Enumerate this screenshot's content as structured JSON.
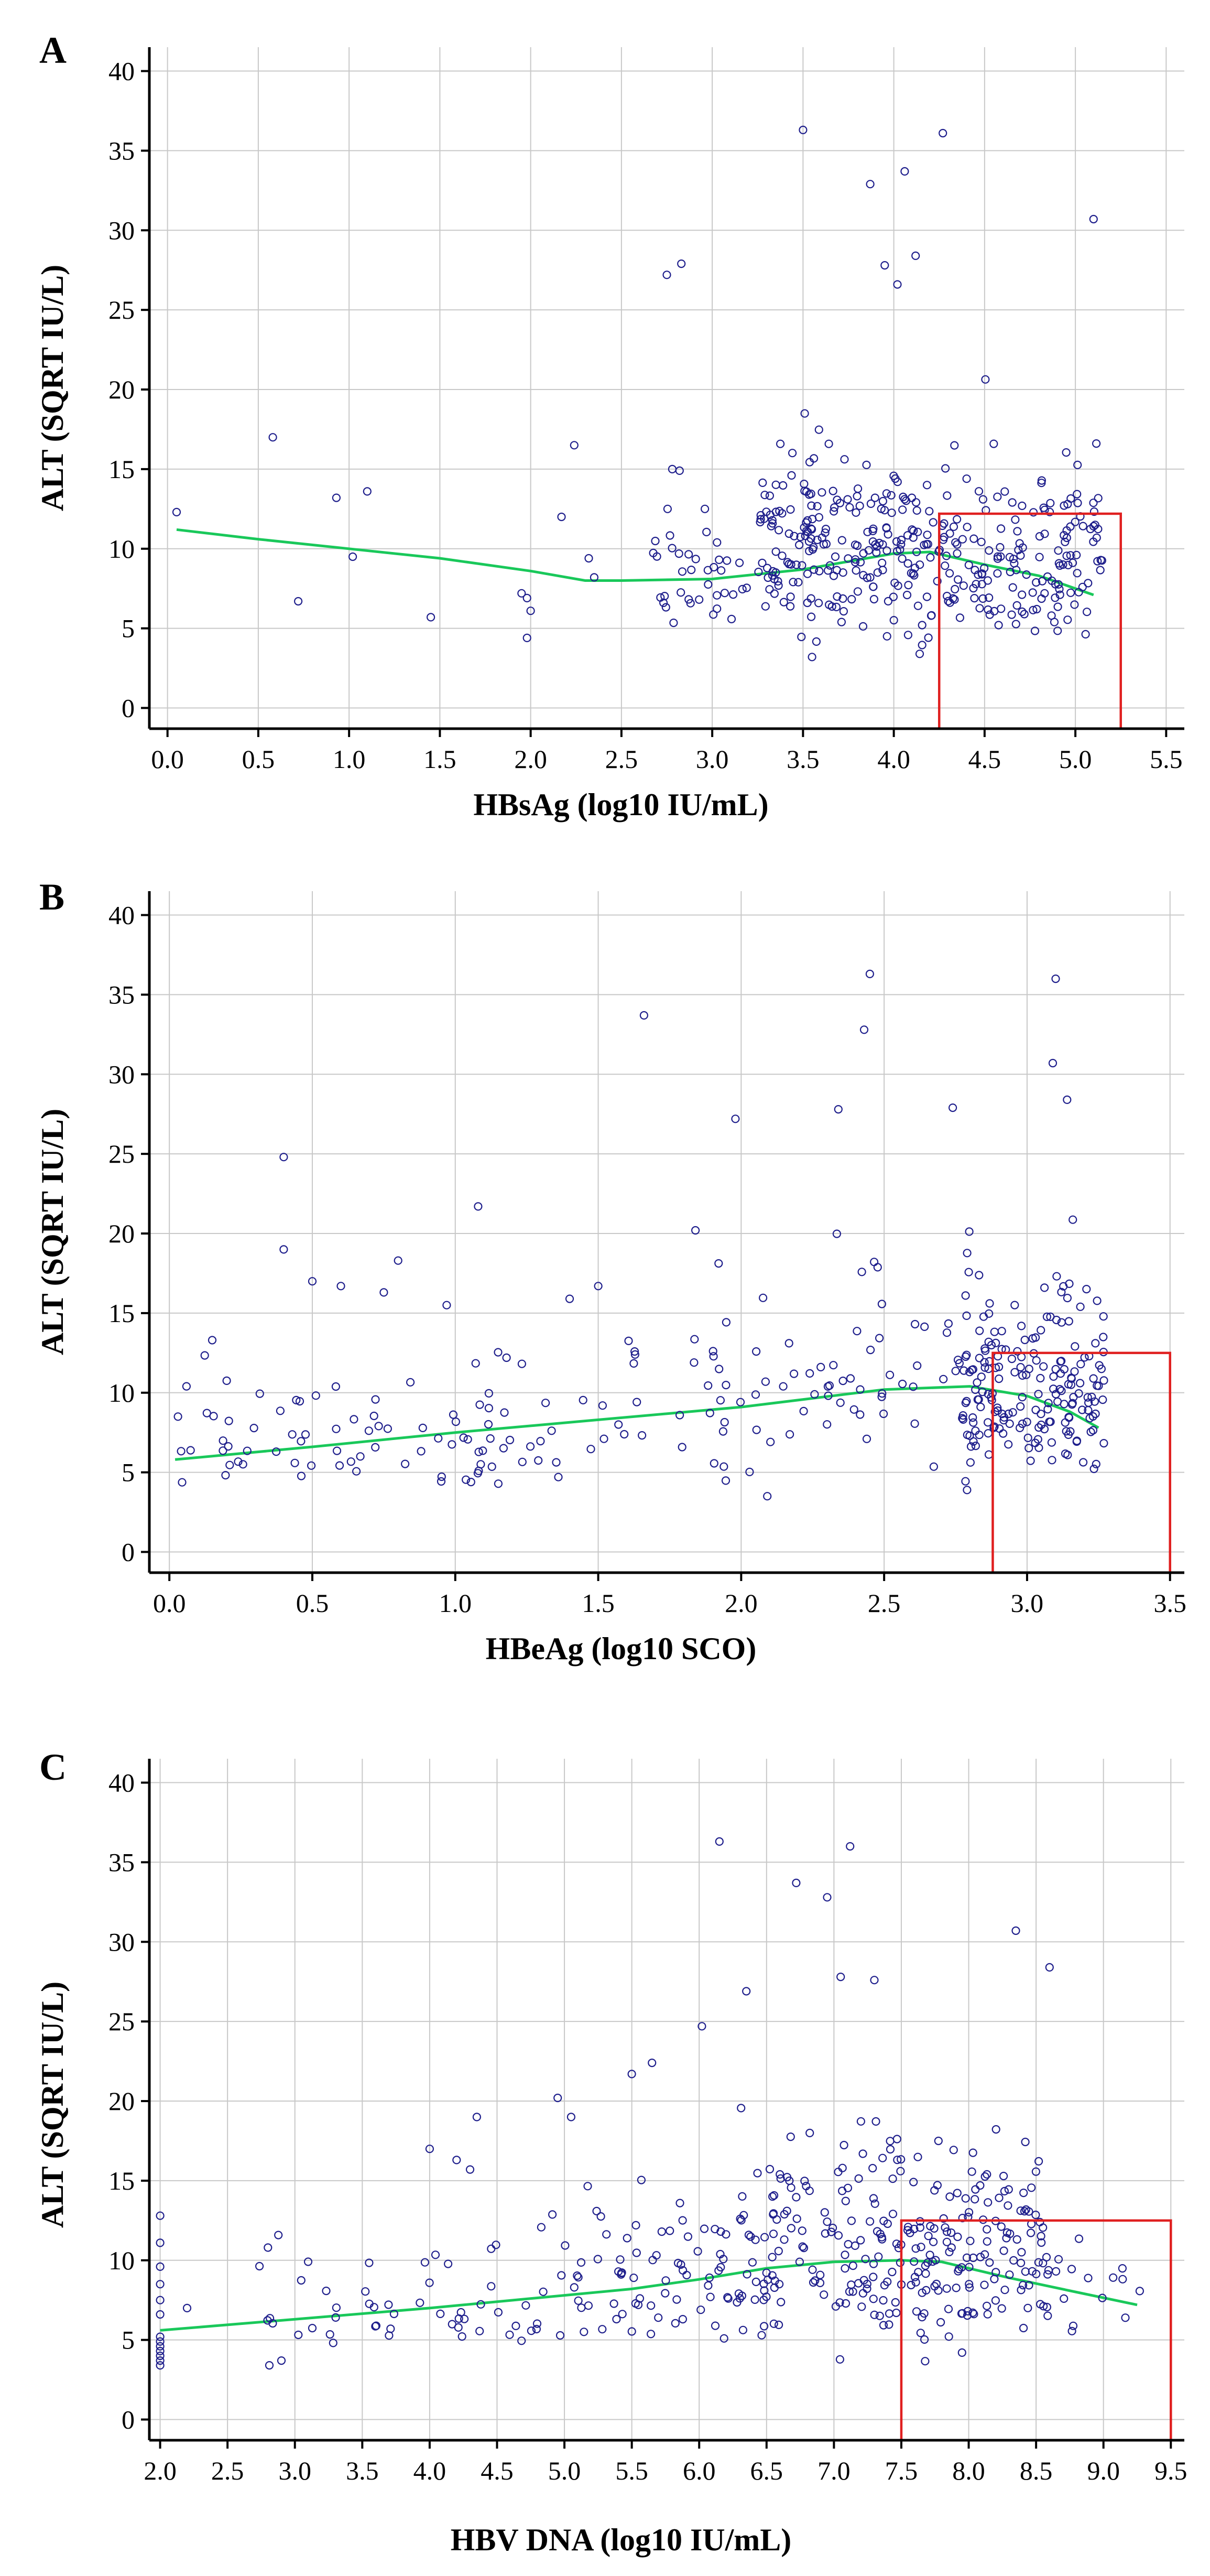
{
  "chart_data": [
    {
      "type": "scatter",
      "panel_label": "A",
      "title": "",
      "xlabel": "HBsAg (log10 IU/mL)",
      "ylabel": "ALT (SQRT IU/L)",
      "xlim": [
        -0.1,
        5.6
      ],
      "ylim": [
        -1.3,
        41.5
      ],
      "xticks": [
        0.0,
        0.5,
        1.0,
        1.5,
        2.0,
        2.5,
        3.0,
        3.5,
        4.0,
        4.5,
        5.0,
        5.5
      ],
      "xtick_labels": [
        "0.0",
        "0.5",
        "1.0",
        "1.5",
        "2.0",
        "2.5",
        "3.0",
        "3.5",
        "4.0",
        "4.5",
        "5.0",
        "5.5"
      ],
      "yticks": [
        0,
        5,
        10,
        15,
        20,
        25,
        30,
        35,
        40
      ],
      "ytick_labels": [
        "0",
        "5",
        "10",
        "15",
        "20",
        "25",
        "30",
        "35",
        "40"
      ],
      "grid": true,
      "trend_line": {
        "x": [
          0.05,
          0.5,
          1.0,
          1.5,
          2.0,
          2.3,
          2.5,
          3.0,
          3.5,
          4.0,
          4.2,
          4.5,
          4.8,
          5.1
        ],
        "y": [
          11.2,
          10.6,
          10.0,
          9.4,
          8.6,
          8.0,
          8.0,
          8.1,
          8.7,
          9.7,
          9.8,
          9.0,
          8.3,
          7.1
        ]
      },
      "highlight_box": {
        "x": [
          4.25,
          5.25
        ],
        "y": [
          -1.3,
          12.2
        ]
      },
      "seed": 101,
      "anchor_points": [
        [
          0.05,
          12.3
        ],
        [
          0.58,
          17.0
        ],
        [
          0.72,
          6.7
        ],
        [
          0.93,
          13.2
        ],
        [
          1.02,
          9.5
        ],
        [
          1.1,
          13.6
        ],
        [
          1.45,
          5.7
        ],
        [
          1.95,
          7.2
        ],
        [
          1.98,
          6.9
        ],
        [
          1.98,
          4.4
        ],
        [
          2.0,
          6.1
        ],
        [
          2.17,
          12.0
        ],
        [
          2.24,
          16.5
        ],
        [
          2.32,
          9.4
        ],
        [
          2.35,
          8.2
        ],
        [
          2.75,
          27.2
        ],
        [
          2.83,
          27.9
        ],
        [
          2.78,
          15.0
        ],
        [
          2.82,
          14.9
        ],
        [
          3.5,
          36.3
        ],
        [
          4.27,
          36.1
        ],
        [
          3.87,
          32.9
        ],
        [
          4.06,
          33.7
        ],
        [
          5.1,
          30.7
        ],
        [
          4.12,
          28.4
        ],
        [
          3.95,
          27.8
        ],
        [
          4.02,
          26.6
        ]
      ],
      "clusters": [
        {
          "n": 38,
          "x": [
            2.65,
            3.25
          ],
          "y_mean": 7.5,
          "y_sd": 2.3,
          "y_min": 3.2,
          "y_max": 12.5
        },
        {
          "n": 230,
          "x": [
            3.25,
            4.3
          ],
          "y_mean": 8.8,
          "y_sd": 3.8,
          "y_min": 3.2,
          "y_max": 26
        },
        {
          "n": 150,
          "x": [
            4.3,
            5.15
          ],
          "y_mean": 8.4,
          "y_sd": 3.6,
          "y_min": 3.2,
          "y_max": 26
        }
      ]
    },
    {
      "type": "scatter",
      "panel_label": "B",
      "title": "",
      "xlabel": "HBeAg (log10 SCO)",
      "ylabel": "ALT (SQRT IU/L)",
      "xlim": [
        -0.07,
        3.55
      ],
      "ylim": [
        -1.3,
        41.5
      ],
      "xticks": [
        0.0,
        0.5,
        1.0,
        1.5,
        2.0,
        2.5,
        3.0,
        3.5
      ],
      "xtick_labels": [
        "0.0",
        "0.5",
        "1.0",
        "1.5",
        "2.0",
        "2.5",
        "3.0",
        "3.5"
      ],
      "yticks": [
        0,
        5,
        10,
        15,
        20,
        25,
        30,
        35,
        40
      ],
      "ytick_labels": [
        "0",
        "5",
        "10",
        "15",
        "20",
        "25",
        "30",
        "35",
        "40"
      ],
      "grid": true,
      "trend_line": {
        "x": [
          0.02,
          0.5,
          1.0,
          1.5,
          2.0,
          2.5,
          2.8,
          3.0,
          3.15,
          3.25
        ],
        "y": [
          5.8,
          6.6,
          7.5,
          8.3,
          9.1,
          10.2,
          10.4,
          9.8,
          8.8,
          7.8
        ]
      },
      "highlight_box": {
        "x": [
          2.88,
          3.5
        ],
        "y": [
          -1.3,
          12.5
        ]
      },
      "seed": 202,
      "anchor_points": [
        [
          2.45,
          36.3
        ],
        [
          3.1,
          36.0
        ],
        [
          1.66,
          33.7
        ],
        [
          2.43,
          32.8
        ],
        [
          3.09,
          30.7
        ],
        [
          3.14,
          28.4
        ],
        [
          2.34,
          27.8
        ],
        [
          1.98,
          27.2
        ],
        [
          2.74,
          27.9
        ],
        [
          0.4,
          24.8
        ],
        [
          1.08,
          21.7
        ],
        [
          0.4,
          19.0
        ],
        [
          1.84,
          20.2
        ],
        [
          0.8,
          18.3
        ],
        [
          0.5,
          17.0
        ],
        [
          0.6,
          16.7
        ],
        [
          0.75,
          16.3
        ],
        [
          0.97,
          15.5
        ],
        [
          1.5,
          16.7
        ],
        [
          1.4,
          15.9
        ],
        [
          0.15,
          13.3
        ],
        [
          0.06,
          10.4
        ],
        [
          0.03,
          8.5
        ]
      ],
      "clusters": [
        {
          "n": 90,
          "x": [
            0.0,
            1.6
          ],
          "y_mean": 6.5,
          "y_sd": 2.5,
          "y_min": 3.0,
          "y_max": 14
        },
        {
          "n": 75,
          "x": [
            1.6,
            2.75
          ],
          "y_mean": 9.0,
          "y_sd": 3.8,
          "y_min": 3.5,
          "y_max": 21
        },
        {
          "n": 200,
          "x": [
            2.75,
            3.27
          ],
          "y_mean": 9.0,
          "y_sd": 4.0,
          "y_min": 3.0,
          "y_max": 23
        }
      ]
    },
    {
      "type": "scatter",
      "panel_label": "C",
      "title": "",
      "xlabel": "HBV DNA (log10 IU/mL)",
      "ylabel": "ALT (SQRT IU/L)",
      "xlim": [
        1.92,
        9.6
      ],
      "ylim": [
        -1.3,
        41.5
      ],
      "xticks": [
        2.0,
        2.5,
        3.0,
        3.5,
        4.0,
        4.5,
        5.0,
        5.5,
        6.0,
        6.5,
        7.0,
        7.5,
        8.0,
        8.5,
        9.0,
        9.5
      ],
      "xtick_labels": [
        "2.0",
        "2.5",
        "3.0",
        "3.5",
        "4.0",
        "4.5",
        "5.0",
        "5.5",
        "6.0",
        "6.5",
        "7.0",
        "7.5",
        "8.0",
        "8.5",
        "9.0",
        "9.5"
      ],
      "yticks": [
        0,
        5,
        10,
        15,
        20,
        25,
        30,
        35,
        40
      ],
      "ytick_labels": [
        "0",
        "5",
        "10",
        "15",
        "20",
        "25",
        "30",
        "35",
        "40"
      ],
      "grid": true,
      "trend_line": {
        "x": [
          2.0,
          3.0,
          4.0,
          5.0,
          5.5,
          6.0,
          6.5,
          7.0,
          7.5,
          7.8,
          8.3,
          8.8,
          9.25
        ],
        "y": [
          5.6,
          6.3,
          7.0,
          7.8,
          8.2,
          8.8,
          9.5,
          9.9,
          10.0,
          9.9,
          8.9,
          8.0,
          7.2
        ]
      },
      "highlight_box": {
        "x": [
          7.5,
          9.5
        ],
        "y": [
          -1.3,
          12.5
        ]
      },
      "seed": 303,
      "anchor_points": [
        [
          6.15,
          36.3
        ],
        [
          7.12,
          36.0
        ],
        [
          6.72,
          33.7
        ],
        [
          6.95,
          32.8
        ],
        [
          8.35,
          30.7
        ],
        [
          8.6,
          28.4
        ],
        [
          7.05,
          27.8
        ],
        [
          6.35,
          26.9
        ],
        [
          7.3,
          27.6
        ],
        [
          6.02,
          24.7
        ],
        [
          5.5,
          21.7
        ],
        [
          5.65,
          22.4
        ],
        [
          4.35,
          19.0
        ],
        [
          4.0,
          17.0
        ],
        [
          4.2,
          16.3
        ],
        [
          4.3,
          15.7
        ],
        [
          2.0,
          12.8
        ],
        [
          2.0,
          11.1
        ],
        [
          2.0,
          9.6
        ],
        [
          2.0,
          8.5
        ],
        [
          2.0,
          7.5
        ],
        [
          2.0,
          6.6
        ],
        [
          2.0,
          5.2
        ],
        [
          2.0,
          4.9
        ],
        [
          2.0,
          4.6
        ],
        [
          2.0,
          4.3
        ],
        [
          2.0,
          4.0
        ],
        [
          2.0,
          3.7
        ],
        [
          2.0,
          3.4
        ],
        [
          2.2,
          7.0
        ],
        [
          2.8,
          10.8
        ],
        [
          2.9,
          3.7
        ],
        [
          4.95,
          20.2
        ],
        [
          5.05,
          19.0
        ]
      ],
      "clusters": [
        {
          "n": 55,
          "x": [
            2.7,
            5.0
          ],
          "y_mean": 7.0,
          "y_sd": 2.7,
          "y_min": 3.2,
          "y_max": 14
        },
        {
          "n": 70,
          "x": [
            5.0,
            6.3
          ],
          "y_mean": 8.0,
          "y_sd": 3.0,
          "y_min": 3.2,
          "y_max": 18
        },
        {
          "n": 150,
          "x": [
            6.3,
            7.6
          ],
          "y_mean": 10.0,
          "y_sd": 4.5,
          "y_min": 3.2,
          "y_max": 25
        },
        {
          "n": 140,
          "x": [
            7.6,
            8.6
          ],
          "y_mean": 9.5,
          "y_sd": 4.0,
          "y_min": 3.2,
          "y_max": 25
        },
        {
          "n": 14,
          "x": [
            8.6,
            9.3
          ],
          "y_mean": 7.5,
          "y_sd": 2.5,
          "y_min": 3.5,
          "y_max": 14
        }
      ]
    }
  ]
}
